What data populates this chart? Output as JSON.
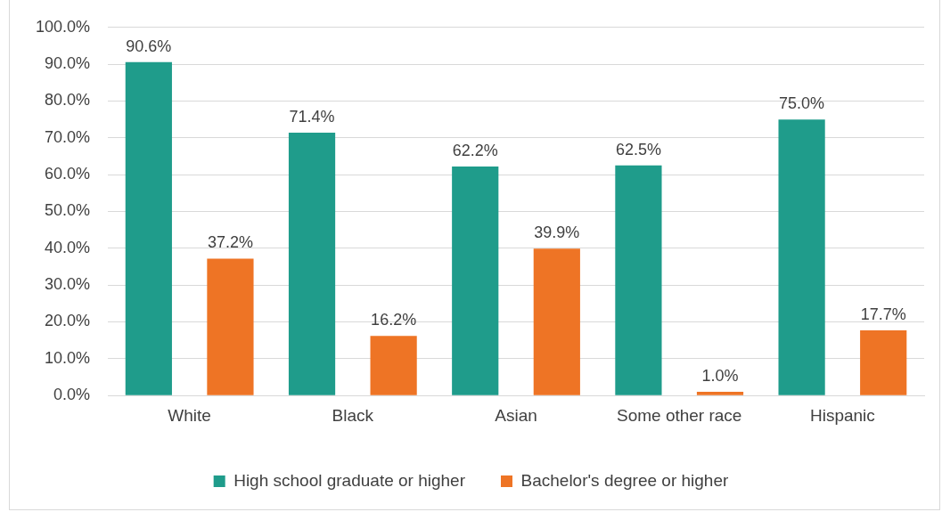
{
  "chart_data": {
    "type": "bar",
    "categories": [
      "White",
      "Black",
      "Asian",
      "Some other race",
      "Hispanic"
    ],
    "series": [
      {
        "name": "High school graduate or higher",
        "color": "#1f9c8b",
        "values": [
          90.6,
          71.4,
          62.2,
          62.5,
          75.0
        ],
        "value_labels": [
          "90.6%",
          "71.4%",
          "62.2%",
          "62.5%",
          "75.0%"
        ]
      },
      {
        "name": "Bachelor's degree or higher",
        "color": "#ee7425",
        "values": [
          37.2,
          16.2,
          39.9,
          1.0,
          17.7
        ],
        "value_labels": [
          "37.2%",
          "16.2%",
          "39.9%",
          "1.0%",
          "17.7%"
        ]
      }
    ],
    "ylim": [
      0,
      100
    ],
    "yticks": [
      {
        "value": 0,
        "label": "0.0%"
      },
      {
        "value": 10,
        "label": "10.0%"
      },
      {
        "value": 20,
        "label": "20.0%"
      },
      {
        "value": 30,
        "label": "30.0%"
      },
      {
        "value": 40,
        "label": "40.0%"
      },
      {
        "value": 50,
        "label": "50.0%"
      },
      {
        "value": 60,
        "label": "60.0%"
      },
      {
        "value": 70,
        "label": "70.0%"
      },
      {
        "value": 80,
        "label": "80.0%"
      },
      {
        "value": 90,
        "label": "90.0%"
      },
      {
        "value": 100,
        "label": "100.0%"
      }
    ],
    "grid": "y",
    "legend": "bottom"
  }
}
